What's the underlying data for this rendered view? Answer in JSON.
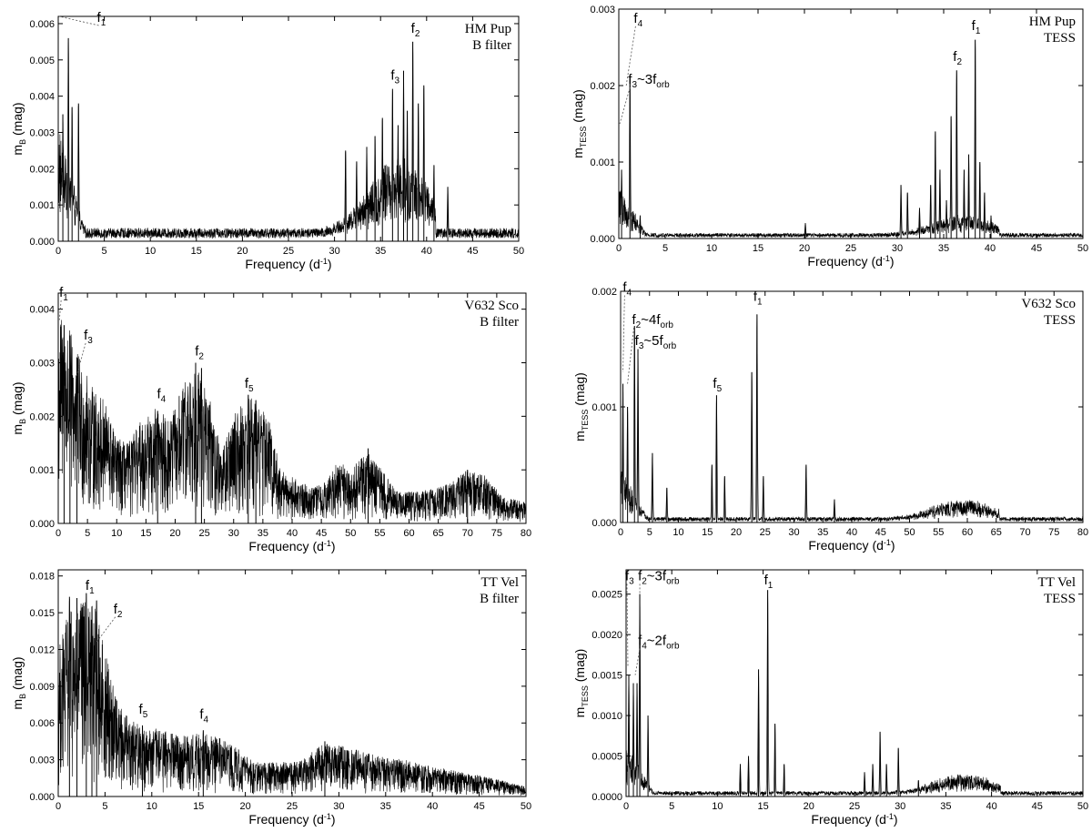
{
  "chart_data": [
    {
      "type": "line",
      "star": "HM Pup",
      "filter": "B filter",
      "xlabel": "Frequency",
      "xunit": "d",
      "xunit_sup": "-1",
      "ylabel_main": "m",
      "ylabel_sub": "B",
      "ylabel_unit": "(mag)",
      "xlim": [
        0,
        50
      ],
      "ylim": [
        0,
        0.0062
      ],
      "xticks": [
        "0",
        "5",
        "10",
        "15",
        "20",
        "25",
        "30",
        "35",
        "40",
        "45",
        "50"
      ],
      "yticks": [
        "0.000",
        "0.001",
        "0.002",
        "0.003",
        "0.004",
        "0.005",
        "0.006"
      ],
      "peaks": [
        {
          "x": 1.1,
          "y": 0.0056
        },
        {
          "x": 0.5,
          "y": 0.0035
        },
        {
          "x": 1.5,
          "y": 0.0037
        },
        {
          "x": 2.2,
          "y": 0.0038
        },
        {
          "x": 31.2,
          "y": 0.0025
        },
        {
          "x": 32.4,
          "y": 0.0022
        },
        {
          "x": 33.5,
          "y": 0.0026
        },
        {
          "x": 34.4,
          "y": 0.0029
        },
        {
          "x": 35.2,
          "y": 0.0034
        },
        {
          "x": 36.3,
          "y": 0.0042
        },
        {
          "x": 36.9,
          "y": 0.0032
        },
        {
          "x": 37.5,
          "y": 0.0047
        },
        {
          "x": 37.9,
          "y": 0.0036
        },
        {
          "x": 38.5,
          "y": 0.0055
        },
        {
          "x": 39.1,
          "y": 0.0038
        },
        {
          "x": 39.7,
          "y": 0.0043
        },
        {
          "x": 40.8,
          "y": 0.0021
        },
        {
          "x": 42.3,
          "y": 0.0015
        }
      ],
      "annotations": [
        {
          "label": "f",
          "sub": "1",
          "x": 4.6,
          "y": 0.006,
          "px": 0.1,
          "py": 0.0062
        },
        {
          "label": "f",
          "sub": "2",
          "x": 38.7,
          "y": 0.0057
        },
        {
          "label": "f",
          "sub": "3",
          "x": 36.5,
          "y": 0.0044
        }
      ]
    },
    {
      "type": "line",
      "star": "HM Pup",
      "filter": "TESS",
      "xlabel": "Frequency",
      "xunit": "d",
      "xunit_sup": "-1",
      "ylabel_main": "m",
      "ylabel_sub": "TESS",
      "ylabel_unit": "(mag)",
      "xlim": [
        0,
        50
      ],
      "ylim": [
        0,
        0.003
      ],
      "xticks": [
        "0",
        "5",
        "10",
        "15",
        "20",
        "25",
        "30",
        "35",
        "40",
        "45",
        "50"
      ],
      "yticks": [
        "0.000",
        "0.001",
        "0.002",
        "0.003"
      ],
      "peaks": [
        {
          "x": 1.2,
          "y": 0.0021
        },
        {
          "x": 0.3,
          "y": 0.0009
        },
        {
          "x": 2.3,
          "y": 0.0003
        },
        {
          "x": 20.1,
          "y": 0.0002
        },
        {
          "x": 30.4,
          "y": 0.0007
        },
        {
          "x": 31.1,
          "y": 0.0006
        },
        {
          "x": 32.4,
          "y": 0.0004
        },
        {
          "x": 33.6,
          "y": 0.0007
        },
        {
          "x": 34.1,
          "y": 0.0014
        },
        {
          "x": 34.6,
          "y": 0.0009
        },
        {
          "x": 35.3,
          "y": 0.0005
        },
        {
          "x": 35.8,
          "y": 0.0016
        },
        {
          "x": 36.4,
          "y": 0.0022
        },
        {
          "x": 37.2,
          "y": 0.0009
        },
        {
          "x": 37.7,
          "y": 0.0011
        },
        {
          "x": 38.4,
          "y": 0.0026
        },
        {
          "x": 38.9,
          "y": 0.001
        },
        {
          "x": 39.4,
          "y": 0.0006
        },
        {
          "x": 40.1,
          "y": 0.0003
        }
      ],
      "annotations": [
        {
          "label": "f",
          "sub": "1",
          "x": 38.4,
          "y": 0.0027
        },
        {
          "label": "f",
          "sub": "2",
          "x": 36.4,
          "y": 0.0023
        },
        {
          "label": "f",
          "sub": "3",
          "rest": "~3f",
          "rest_sub": "orb",
          "x": 1.4,
          "y": 0.002,
          "px": 0.1,
          "py": 0.0015
        },
        {
          "label": "f",
          "sub": "4",
          "x": 2.0,
          "y": 0.0028,
          "px": 0.8,
          "py": 0.002
        }
      ]
    },
    {
      "type": "line",
      "star": "V632 Sco",
      "filter": "B filter",
      "xlabel": "Frequency",
      "xunit": "d",
      "xunit_sup": "-1",
      "ylabel_main": "m",
      "ylabel_sub": "B",
      "ylabel_unit": "(mag)",
      "xlim": [
        0,
        80
      ],
      "ylim": [
        0,
        0.0043
      ],
      "xticks": [
        "0",
        "5",
        "10",
        "15",
        "20",
        "25",
        "30",
        "35",
        "40",
        "45",
        "50",
        "55",
        "60",
        "65",
        "70",
        "75",
        "80"
      ],
      "yticks": [
        "0.000",
        "0.001",
        "0.002",
        "0.003",
        "0.004"
      ],
      "peaks": [
        {
          "x": 1.0,
          "y": 0.0037
        },
        {
          "x": 2.0,
          "y": 0.0035
        },
        {
          "x": 3.2,
          "y": 0.0031
        },
        {
          "x": 17.0,
          "y": 0.0021
        },
        {
          "x": 23.5,
          "y": 0.003
        },
        {
          "x": 24.5,
          "y": 0.0029
        },
        {
          "x": 32.5,
          "y": 0.0024
        },
        {
          "x": 33.8,
          "y": 0.0023
        },
        {
          "x": 53.0,
          "y": 0.0014
        },
        {
          "x": 70.0,
          "y": 0.001
        }
      ],
      "envelope": [
        [
          0,
          0.004
        ],
        [
          2,
          0.0036
        ],
        [
          4,
          0.003
        ],
        [
          6,
          0.0025
        ],
        [
          8,
          0.0023
        ],
        [
          10,
          0.0016
        ],
        [
          12,
          0.0015
        ],
        [
          14,
          0.0019
        ],
        [
          17,
          0.0022
        ],
        [
          19,
          0.0019
        ],
        [
          21,
          0.0025
        ],
        [
          23.5,
          0.003
        ],
        [
          26,
          0.0023
        ],
        [
          28,
          0.0013
        ],
        [
          30,
          0.0021
        ],
        [
          33,
          0.0024
        ],
        [
          36,
          0.002
        ],
        [
          38,
          0.001
        ],
        [
          41,
          0.0008
        ],
        [
          44,
          0.0007
        ],
        [
          46,
          0.0008
        ],
        [
          48,
          0.0012
        ],
        [
          50,
          0.001
        ],
        [
          53,
          0.0014
        ],
        [
          56,
          0.0009
        ],
        [
          58,
          0.0006
        ],
        [
          62,
          0.0006
        ],
        [
          66,
          0.0007
        ],
        [
          70,
          0.001
        ],
        [
          73,
          0.0009
        ],
        [
          76,
          0.0005
        ],
        [
          80,
          0.0004
        ]
      ],
      "annotations": [
        {
          "label": "f",
          "sub": "1",
          "x": 0.8,
          "y": 0.0042,
          "px": 0.2,
          "py": 0.0038
        },
        {
          "label": "f",
          "sub": "2",
          "x": 24.0,
          "y": 0.0031
        },
        {
          "label": "f",
          "sub": "3",
          "x": 5.0,
          "y": 0.0034,
          "px": 3.0,
          "py": 0.0027
        },
        {
          "label": "f",
          "sub": "4",
          "x": 17.5,
          "y": 0.0023
        },
        {
          "label": "f",
          "sub": "5",
          "x": 32.5,
          "y": 0.0025
        }
      ]
    },
    {
      "type": "line",
      "star": "V632 Sco",
      "filter": "TESS",
      "xlabel": "Frequency",
      "xunit": "d",
      "xunit_sup": "-1",
      "ylabel_main": "m",
      "ylabel_sub": "TESS",
      "ylabel_unit": "(mag)",
      "xlim": [
        0,
        80
      ],
      "ylim": [
        0,
        0.002
      ],
      "xticks": [
        "0",
        "5",
        "10",
        "15",
        "20",
        "25",
        "30",
        "35",
        "40",
        "45",
        "50",
        "55",
        "60",
        "65",
        "70",
        "75",
        "80"
      ],
      "yticks": [
        "0.000",
        "0.001",
        "0.002"
      ],
      "peaks": [
        {
          "x": 0.4,
          "y": 0.0012
        },
        {
          "x": 1.2,
          "y": 0.001
        },
        {
          "x": 2.4,
          "y": 0.0017
        },
        {
          "x": 3.0,
          "y": 0.0015
        },
        {
          "x": 5.5,
          "y": 0.0006
        },
        {
          "x": 8.0,
          "y": 0.0003
        },
        {
          "x": 15.8,
          "y": 0.0005
        },
        {
          "x": 16.6,
          "y": 0.0011
        },
        {
          "x": 18.0,
          "y": 0.0004
        },
        {
          "x": 22.7,
          "y": 0.0013
        },
        {
          "x": 23.6,
          "y": 0.0018
        },
        {
          "x": 24.7,
          "y": 0.0004
        },
        {
          "x": 32.1,
          "y": 0.0005
        },
        {
          "x": 37.0,
          "y": 0.0002
        }
      ],
      "annotations": [
        {
          "label": "f",
          "sub": "1",
          "x": 23.6,
          "y": 0.0019
        },
        {
          "label": "f",
          "sub": "2",
          "rest": "~4f",
          "rest_sub": "orb",
          "x": 2.6,
          "y": 0.0017,
          "px": 1.2,
          "py": 0.0012
        },
        {
          "label": "f",
          "sub": "3",
          "rest": "~5f",
          "rest_sub": "orb",
          "x": 3.1,
          "y": 0.00152
        },
        {
          "label": "f",
          "sub": "4",
          "x": 1.0,
          "y": 0.00198,
          "px": 0.4,
          "py": 0.0013
        },
        {
          "label": "f",
          "sub": "5",
          "x": 16.6,
          "y": 0.00115
        }
      ]
    },
    {
      "type": "line",
      "star": "TT Vel",
      "filter": "B filter",
      "xlabel": "Frequency",
      "xunit": "d",
      "xunit_sup": "-1",
      "ylabel_main": "m",
      "ylabel_sub": "B",
      "ylabel_unit": "(mag)",
      "xlim": [
        0,
        50
      ],
      "ylim": [
        0,
        0.0185
      ],
      "xticks": [
        "0",
        "5",
        "10",
        "15",
        "20",
        "25",
        "30",
        "35",
        "40",
        "45",
        "50"
      ],
      "yticks": [
        "0.000",
        "0.003",
        "0.006",
        "0.009",
        "0.012",
        "0.015",
        "0.018"
      ],
      "peaks": [
        {
          "x": 1.2,
          "y": 0.0163
        },
        {
          "x": 2.0,
          "y": 0.0162
        },
        {
          "x": 3.0,
          "y": 0.0166
        },
        {
          "x": 3.6,
          "y": 0.0155
        },
        {
          "x": 4.1,
          "y": 0.016
        },
        {
          "x": 9.0,
          "y": 0.0058
        },
        {
          "x": 15.5,
          "y": 0.0054
        },
        {
          "x": 28.5,
          "y": 0.0045
        }
      ],
      "envelope": [
        [
          0,
          0.012
        ],
        [
          1,
          0.015
        ],
        [
          2.5,
          0.016
        ],
        [
          4,
          0.0155
        ],
        [
          5,
          0.012
        ],
        [
          6,
          0.009
        ],
        [
          7,
          0.007
        ],
        [
          9,
          0.0058
        ],
        [
          11,
          0.0055
        ],
        [
          13,
          0.005
        ],
        [
          15,
          0.0052
        ],
        [
          17,
          0.005
        ],
        [
          19,
          0.004
        ],
        [
          21,
          0.0028
        ],
        [
          24,
          0.0028
        ],
        [
          26,
          0.003
        ],
        [
          28.5,
          0.0045
        ],
        [
          31,
          0.004
        ],
        [
          34,
          0.0035
        ],
        [
          37,
          0.003
        ],
        [
          40,
          0.0025
        ],
        [
          43,
          0.002
        ],
        [
          46,
          0.0016
        ],
        [
          48,
          0.0012
        ],
        [
          50,
          0.0008
        ]
      ],
      "annotations": [
        {
          "label": "f",
          "sub": "1",
          "x": 3.3,
          "y": 0.0167
        },
        {
          "label": "f",
          "sub": "2",
          "x": 6.3,
          "y": 0.0148,
          "px": 4.0,
          "py": 0.0125
        },
        {
          "label": "f",
          "sub": "4",
          "x": 15.5,
          "y": 0.0062
        },
        {
          "label": "f",
          "sub": "5",
          "x": 9.0,
          "y": 0.0066
        }
      ]
    },
    {
      "type": "line",
      "star": "TT Vel",
      "filter": "TESS",
      "xlabel": "Frequency",
      "xunit": "d",
      "xunit_sup": "-1",
      "ylabel_main": "m",
      "ylabel_sub": "TESS",
      "ylabel_unit": "(mag)",
      "xlim": [
        0,
        50
      ],
      "ylim": [
        0,
        0.0028
      ],
      "xticks": [
        "0",
        "5",
        "10",
        "15",
        "20",
        "25",
        "30",
        "35",
        "40",
        "45",
        "50"
      ],
      "yticks": [
        "0.0000",
        "0.0005",
        "0.0010",
        "0.0015",
        "0.0020",
        "0.0025"
      ],
      "peaks": [
        {
          "x": 0.3,
          "y": 0.0015
        },
        {
          "x": 0.8,
          "y": 0.0014
        },
        {
          "x": 1.2,
          "y": 0.0014
        },
        {
          "x": 1.5,
          "y": 0.0025
        },
        {
          "x": 2.4,
          "y": 0.001
        },
        {
          "x": 12.5,
          "y": 0.0004
        },
        {
          "x": 13.4,
          "y": 0.0005
        },
        {
          "x": 14.5,
          "y": 0.00157
        },
        {
          "x": 15.5,
          "y": 0.00255
        },
        {
          "x": 16.3,
          "y": 0.0009
        },
        {
          "x": 17.3,
          "y": 0.0004
        },
        {
          "x": 26.1,
          "y": 0.0003
        },
        {
          "x": 27.0,
          "y": 0.0004
        },
        {
          "x": 27.8,
          "y": 0.0008
        },
        {
          "x": 28.5,
          "y": 0.0004
        },
        {
          "x": 29.8,
          "y": 0.0006
        },
        {
          "x": 32.0,
          "y": 0.0002
        }
      ],
      "annotations": [
        {
          "label": "f",
          "sub": "1",
          "x": 15.5,
          "y": 0.0026
        },
        {
          "label": "f",
          "sub": "2",
          "rest": "~3f",
          "rest_sub": "orb",
          "x": 1.7,
          "y": 0.00265,
          "px": 1.5,
          "py": 0.0025
        },
        {
          "label": "f",
          "sub": "3",
          "x": 0.3,
          "y": 0.00265,
          "px": 0.2,
          "py": 0.0016
        },
        {
          "label": "f",
          "sub": "4",
          "rest": "~2f",
          "rest_sub": "orb",
          "x": 1.7,
          "y": 0.00185,
          "px": 1.0,
          "py": 0.0015
        }
      ]
    }
  ]
}
